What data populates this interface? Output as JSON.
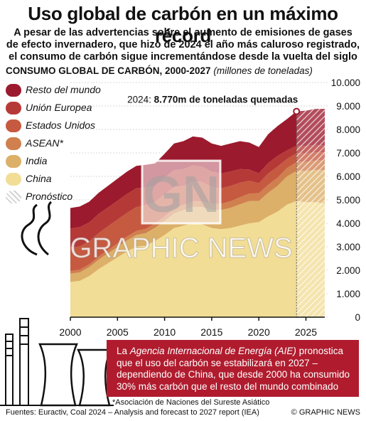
{
  "title": "Uso global de carbón en un máximo récord",
  "subtitle_lines": [
    "A pesar de las advertencias sobre el aumento de emisiones de gases",
    "de efecto invernadero, que hizo de 2024 el año más caluroso registrado,",
    "el consumo de carbón sigue incrementándose desde la vuelta del siglo"
  ],
  "chart_heading": "CONSUMO GLOBAL DE CARBÓN, 2000-2027",
  "chart_heading_units": "(millones de toneladas)",
  "annotation": {
    "prefix": "2024: ",
    "value": "8.770m de toneladas quemadas"
  },
  "watermark": {
    "logo": "GN",
    "text": "GRAPHIC NEWS"
  },
  "colors": {
    "resto": "#9c1a2d",
    "ue": "#b53a37",
    "eeuu": "#c65a40",
    "asean": "#d0804f",
    "india": "#dcb068",
    "china": "#f2dd96",
    "forecast_hatch": "#e8a4a8",
    "note_box": "#b01c2e"
  },
  "chart_data": {
    "type": "area",
    "stacked": true,
    "x": [
      2000,
      2001,
      2002,
      2003,
      2004,
      2005,
      2006,
      2007,
      2008,
      2009,
      2010,
      2011,
      2012,
      2013,
      2014,
      2015,
      2016,
      2017,
      2018,
      2019,
      2020,
      2021,
      2022,
      2023,
      2024,
      2025,
      2026,
      2027
    ],
    "forecast_from": 2024,
    "ylim": [
      0,
      10000
    ],
    "yticks": [
      0,
      1000,
      2000,
      3000,
      4000,
      5000,
      6000,
      7000,
      8000,
      9000,
      10000
    ],
    "ytick_labels": [
      "0",
      "1.000",
      "2.000",
      "3.000",
      "4.000",
      "5.000",
      "6.000",
      "7.000",
      "8.000",
      "9.000",
      "10.000"
    ],
    "xticks": [
      2000,
      2005,
      2010,
      2015,
      2020,
      2025
    ],
    "xtick_labels": [
      "2000",
      "2005",
      "2010",
      "2015",
      "2020",
      "2025"
    ],
    "series": [
      {
        "name": "China",
        "color_key": "china",
        "values": [
          1500,
          1550,
          1750,
          2050,
          2300,
          2550,
          2800,
          3000,
          3050,
          3250,
          3500,
          3800,
          3900,
          4000,
          3950,
          3800,
          3750,
          3800,
          3900,
          4000,
          4050,
          4300,
          4500,
          4800,
          4950,
          4900,
          4900,
          4850
        ]
      },
      {
        "name": "India",
        "color_key": "india",
        "values": [
          350,
          360,
          380,
          400,
          420,
          440,
          470,
          500,
          530,
          560,
          590,
          620,
          660,
          700,
          740,
          780,
          820,
          860,
          910,
          950,
          900,
          1000,
          1100,
          1200,
          1280,
          1330,
          1380,
          1420
        ]
      },
      {
        "name": "ASEAN*",
        "color_key": "asean",
        "values": [
          110,
          115,
          120,
          130,
          140,
          150,
          160,
          170,
          180,
          190,
          200,
          210,
          220,
          230,
          240,
          250,
          260,
          280,
          300,
          320,
          330,
          340,
          350,
          360,
          380,
          390,
          400,
          410
        ]
      },
      {
        "name": "Estados Unidos",
        "color_key": "eeuu",
        "values": [
          1000,
          990,
          980,
          1000,
          1010,
          1020,
          1010,
          1020,
          1010,
          910,
          950,
          900,
          810,
          840,
          830,
          720,
          660,
          650,
          620,
          540,
          430,
          480,
          470,
          390,
          370,
          360,
          350,
          340
        ]
      },
      {
        "name": "Unión Europea",
        "color_key": "ue",
        "values": [
          820,
          820,
          810,
          820,
          810,
          800,
          810,
          800,
          760,
          690,
          720,
          730,
          720,
          700,
          650,
          650,
          630,
          620,
          580,
          480,
          420,
          450,
          460,
          360,
          330,
          320,
          310,
          300
        ]
      },
      {
        "name": "Resto del mundo",
        "color_key": "resto",
        "values": [
          870,
          880,
          880,
          900,
          920,
          940,
          950,
          960,
          960,
          950,
          1000,
          1140,
          1190,
          1230,
          1240,
          1200,
          1180,
          1190,
          1190,
          1150,
          1120,
          1230,
          1270,
          1340,
          1460,
          1500,
          1530,
          1560
        ]
      }
    ],
    "annotation_point": {
      "x": 2024,
      "y": 8770
    }
  },
  "legend": [
    {
      "label": "Resto del mundo",
      "color_key": "resto"
    },
    {
      "label": "Unión Europea",
      "color_key": "ue"
    },
    {
      "label": "Estados Unidos",
      "color_key": "eeuu"
    },
    {
      "label": "ASEAN*",
      "color_key": "asean"
    },
    {
      "label": "India",
      "color_key": "india"
    },
    {
      "label": "China",
      "color_key": "china"
    },
    {
      "label": "Pronóstico",
      "color_key": "forecast_hatch"
    }
  ],
  "note": {
    "pre": "La ",
    "agency": "Agencia Internacional de Energía (AIE)",
    "post": " pronostica que el uso del carbón se estabilizará en 2027 – dependiendo de China, que desde 2000 ha consumido 30% más carbón que el resto del mundo combinado"
  },
  "footnote": "*Asociación de Naciones del Sureste Asiático",
  "sources": "Fuentes: Euractiv, Coal 2024 – Analysis and forecast to 2027 report (IEA)",
  "credit": "© GRAPHIC NEWS"
}
